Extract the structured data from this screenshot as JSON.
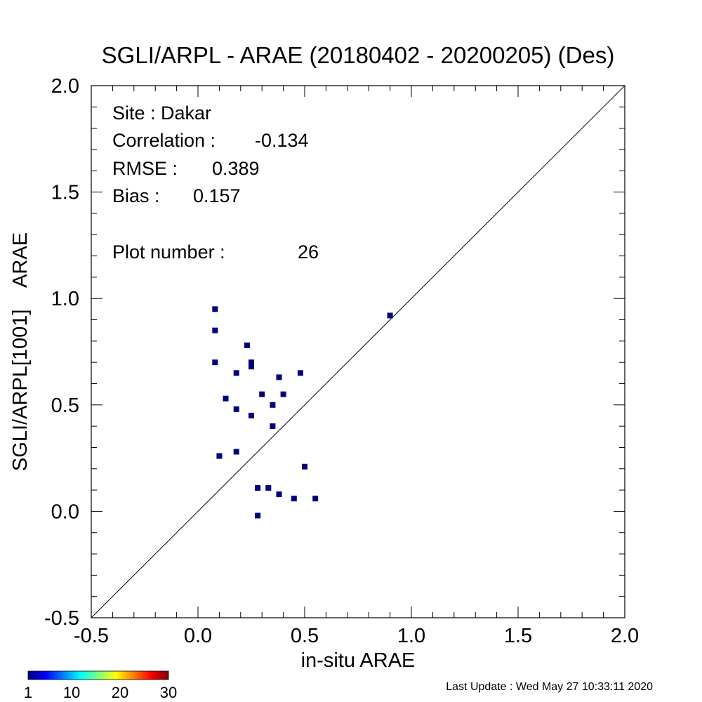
{
  "chart_data": {
    "type": "scatter",
    "title": "SGLI/ARPL - ARAE (20180402 - 20200205) (Des)",
    "xlabel": "in-situ ARAE",
    "ylabel": "SGLI/ARPL[1001]    ARAE",
    "xlim": [
      -0.5,
      2.0
    ],
    "ylim": [
      -0.5,
      2.0
    ],
    "x_ticks": [
      "-0.5",
      "0.0",
      "0.5",
      "1.0",
      "1.5",
      "2.0"
    ],
    "y_ticks": [
      "-0.5",
      "0.0",
      "0.5",
      "1.0",
      "1.5",
      "2.0"
    ],
    "one_to_one_line": true,
    "grid": false,
    "point_color": "#00007f",
    "points": [
      {
        "x": 0.08,
        "y": 0.95
      },
      {
        "x": 0.08,
        "y": 0.85
      },
      {
        "x": 0.08,
        "y": 0.7
      },
      {
        "x": 0.1,
        "y": 0.26
      },
      {
        "x": 0.13,
        "y": 0.53
      },
      {
        "x": 0.18,
        "y": 0.65
      },
      {
        "x": 0.18,
        "y": 0.48
      },
      {
        "x": 0.18,
        "y": 0.28
      },
      {
        "x": 0.23,
        "y": 0.78
      },
      {
        "x": 0.25,
        "y": 0.7
      },
      {
        "x": 0.25,
        "y": 0.68
      },
      {
        "x": 0.25,
        "y": 0.45
      },
      {
        "x": 0.28,
        "y": 0.11
      },
      {
        "x": 0.28,
        "y": -0.02
      },
      {
        "x": 0.3,
        "y": 0.55
      },
      {
        "x": 0.33,
        "y": 0.11
      },
      {
        "x": 0.35,
        "y": 0.5
      },
      {
        "x": 0.35,
        "y": 0.4
      },
      {
        "x": 0.38,
        "y": 0.63
      },
      {
        "x": 0.38,
        "y": 0.08
      },
      {
        "x": 0.4,
        "y": 0.55
      },
      {
        "x": 0.45,
        "y": 0.06
      },
      {
        "x": 0.48,
        "y": 0.65
      },
      {
        "x": 0.5,
        "y": 0.21
      },
      {
        "x": 0.55,
        "y": 0.06
      },
      {
        "x": 0.9,
        "y": 0.92
      }
    ],
    "stats": {
      "site": "Site : Dakar",
      "correlation_label": "Correlation :",
      "correlation_value": "-0.134",
      "rmse_label": "RMSE :",
      "rmse_value": "0.389",
      "bias_label": "Bias :",
      "bias_value": "0.157",
      "plot_number_label": "Plot number :",
      "plot_number_value": "26"
    },
    "colorbar": {
      "labels": [
        "1",
        "10",
        "20",
        "30"
      ],
      "values": [
        1,
        10,
        20,
        30
      ],
      "range": [
        1,
        30
      ],
      "colors": [
        "#00007f",
        "#0000ff",
        "#007fff",
        "#00ffff",
        "#7fff7f",
        "#ffff00",
        "#ff7f00",
        "#ff0000",
        "#7f0000"
      ]
    },
    "last_update": "Last Update : Wed May 27 10:33:11 2020"
  }
}
